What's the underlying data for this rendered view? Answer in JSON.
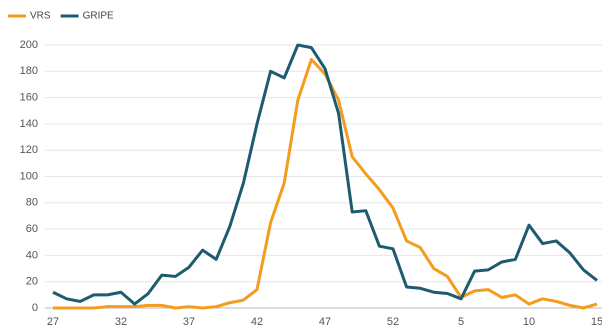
{
  "chart_data": {
    "type": "line",
    "categories": [
      "27",
      null,
      null,
      null,
      null,
      "32",
      null,
      null,
      null,
      null,
      "37",
      null,
      null,
      null,
      null,
      "42",
      null,
      null,
      null,
      null,
      "47",
      null,
      null,
      null,
      null,
      "52",
      null,
      null,
      null,
      null,
      "5",
      null,
      null,
      null,
      null,
      "10",
      null,
      null,
      null,
      null,
      "15"
    ],
    "series": [
      {
        "name": "VRS",
        "color": "#f39c1f",
        "values": [
          0,
          0,
          0,
          0,
          1,
          1,
          1,
          2,
          2,
          0,
          1,
          0,
          1,
          4,
          6,
          14,
          65,
          95,
          158,
          189,
          178,
          158,
          115,
          102,
          90,
          76,
          51,
          46,
          30,
          24,
          8,
          13,
          14,
          8,
          10,
          3,
          7,
          5,
          2,
          0,
          3
        ]
      },
      {
        "name": "GRIPE",
        "color": "#1d5b70",
        "values": [
          12,
          7,
          5,
          10,
          10,
          12,
          3,
          11,
          25,
          24,
          31,
          44,
          37,
          62,
          95,
          140,
          180,
          175,
          200,
          198,
          182,
          148,
          73,
          74,
          47,
          45,
          16,
          15,
          12,
          11,
          7,
          28,
          29,
          35,
          37,
          63,
          49,
          51,
          42,
          29,
          21
        ]
      }
    ],
    "ylim": [
      0,
      200
    ],
    "yticks": [
      0,
      20,
      40,
      60,
      80,
      100,
      120,
      140,
      160,
      180,
      200
    ],
    "grid": true,
    "legend": "top-left"
  }
}
